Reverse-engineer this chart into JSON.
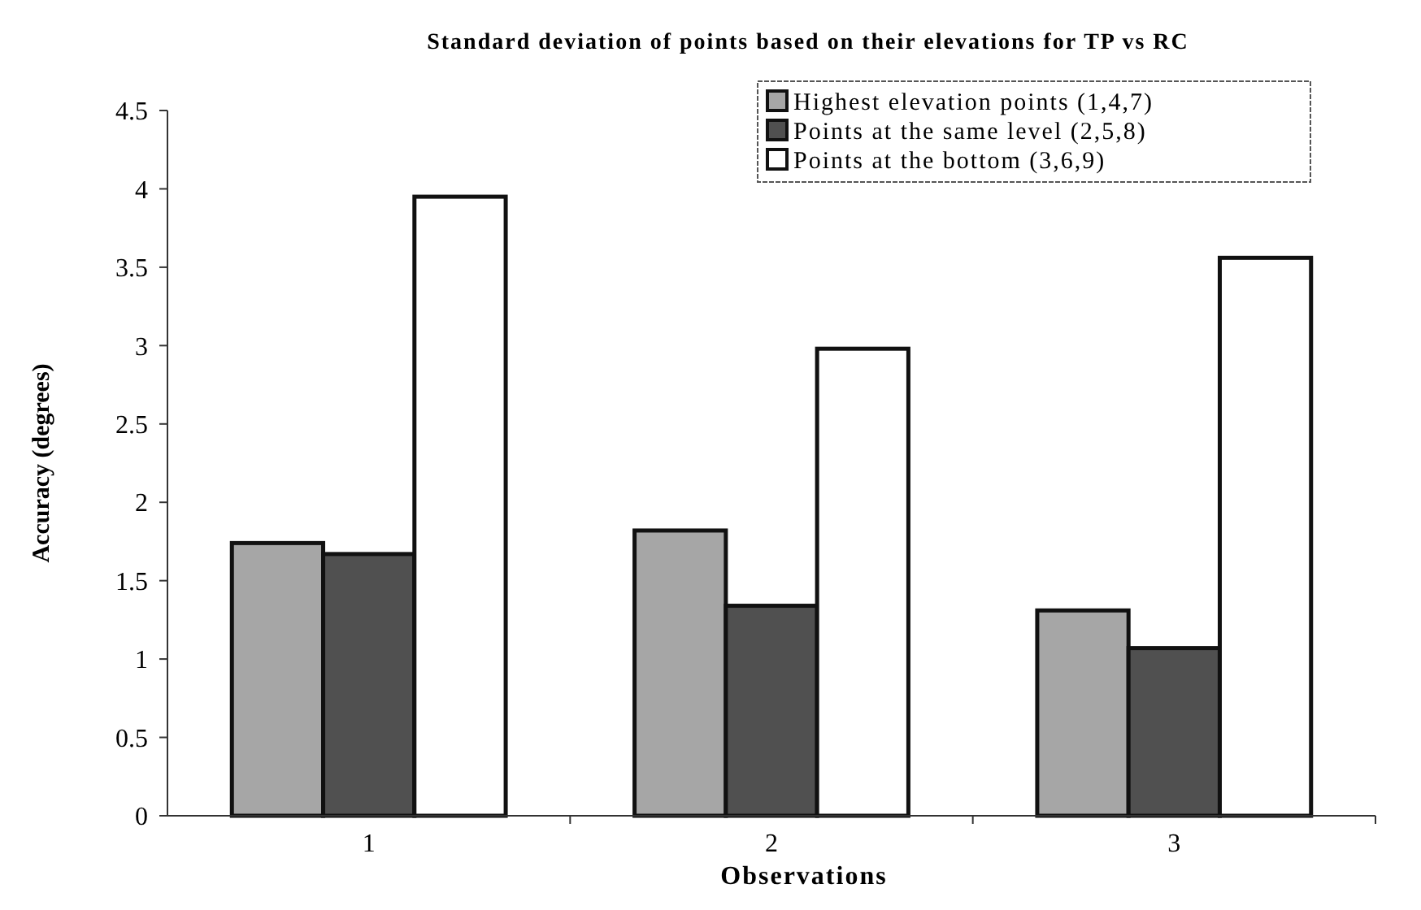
{
  "chart_data": {
    "type": "bar",
    "title": "Standard deviation of points based on their elevations for TP vs RC",
    "xlabel": "Observations",
    "ylabel": "Accuracy (degrees)",
    "categories": [
      "1",
      "2",
      "3"
    ],
    "series": [
      {
        "name": "Highest elevation points (1,4,7)",
        "color": "#a6a6a6",
        "values": [
          1.74,
          1.82,
          1.31
        ]
      },
      {
        "name": "Points at the same level (2,5,8)",
        "color": "#505050",
        "values": [
          1.67,
          1.34,
          1.07
        ]
      },
      {
        "name": "Points at the bottom (3,6,9)",
        "color": "#ffffff",
        "values": [
          3.95,
          2.98,
          3.56
        ]
      }
    ],
    "ylim": [
      0,
      4.5
    ],
    "yticks": [
      0,
      0.5,
      1,
      1.5,
      2,
      2.5,
      3,
      3.5,
      4,
      4.5
    ],
    "grid": false,
    "legend": "top right"
  }
}
